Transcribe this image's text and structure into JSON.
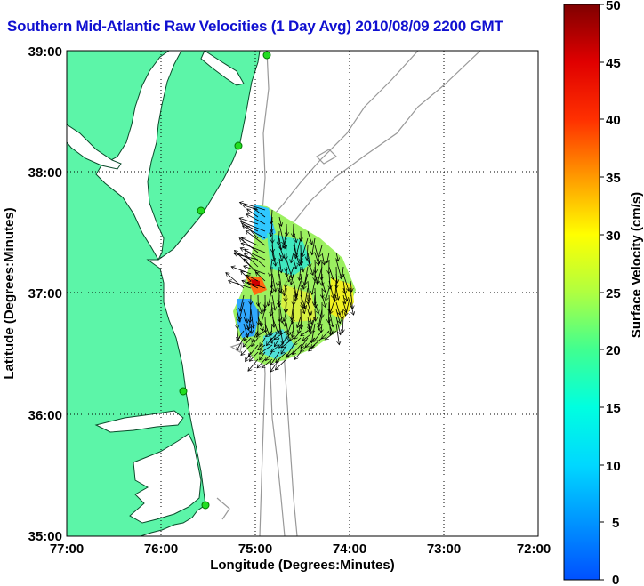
{
  "title": "Southern Mid-Atlantic Raw Velocities (1 Day Avg) 2010/08/09 2200 GMT",
  "axes": {
    "xlabel": "Longitude (Degrees:Minutes)",
    "ylabel": "Latitude (Degrees:Minutes)",
    "xticks": [
      "77:00",
      "76:00",
      "75:00",
      "74:00",
      "73:00",
      "72:00"
    ],
    "yticks": [
      "39:00",
      "38:00",
      "37:00",
      "36:00",
      "35:00"
    ]
  },
  "colorbar": {
    "label": "Surface Velocity (cm/s)",
    "ticks": [
      "50",
      "45",
      "40",
      "35",
      "30",
      "25",
      "20",
      "15",
      "10",
      "5",
      "0"
    ],
    "min": 0,
    "max": 50,
    "units": "cm/s"
  },
  "colors": {
    "land": "#5cf5a8",
    "title": "#1010d0",
    "bathymetry": "#999999",
    "station": "#22dd22"
  }
}
